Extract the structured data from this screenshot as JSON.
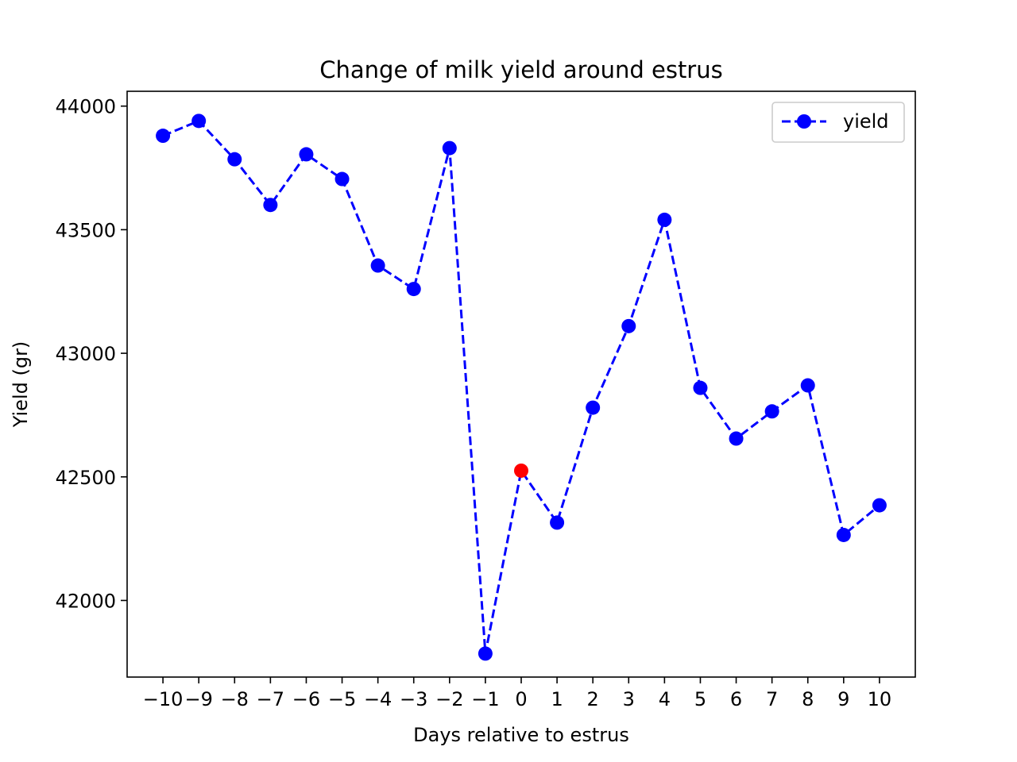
{
  "chart_data": {
    "type": "line",
    "title": "Change of milk yield around estrus",
    "xlabel": "Days relative to estrus",
    "ylabel": "Yield (gr)",
    "x": [
      -10,
      -9,
      -8,
      -7,
      -6,
      -5,
      -4,
      -3,
      -2,
      -1,
      0,
      1,
      2,
      3,
      4,
      5,
      6,
      7,
      8,
      9,
      10
    ],
    "x_tick_labels": [
      "−10",
      "−9",
      "−8",
      "−7",
      "−6",
      "−5",
      "−4",
      "−3",
      "−2",
      "−1",
      "0",
      "1",
      "2",
      "3",
      "4",
      "5",
      "6",
      "7",
      "8",
      "9",
      "10"
    ],
    "y_ticks": [
      42000,
      42500,
      43000,
      43500,
      44000
    ],
    "y_tick_labels": [
      "42000",
      "42500",
      "43000",
      "43500",
      "44000"
    ],
    "xlim": [
      -11,
      11
    ],
    "ylim": [
      41690,
      44060
    ],
    "grid": false,
    "legend_position": "top-right",
    "series": [
      {
        "name": "yield",
        "color": "#0000ff",
        "line_style": "dashed",
        "marker": "circle",
        "values": [
          43880,
          43940,
          43785,
          43600,
          43805,
          43705,
          43355,
          43260,
          43830,
          41785,
          42525,
          42315,
          42780,
          43110,
          43540,
          42860,
          42655,
          42765,
          42870,
          42265,
          42385
        ]
      }
    ],
    "highlight": {
      "x": 0,
      "value": 42525,
      "color": "#ff0000"
    }
  }
}
